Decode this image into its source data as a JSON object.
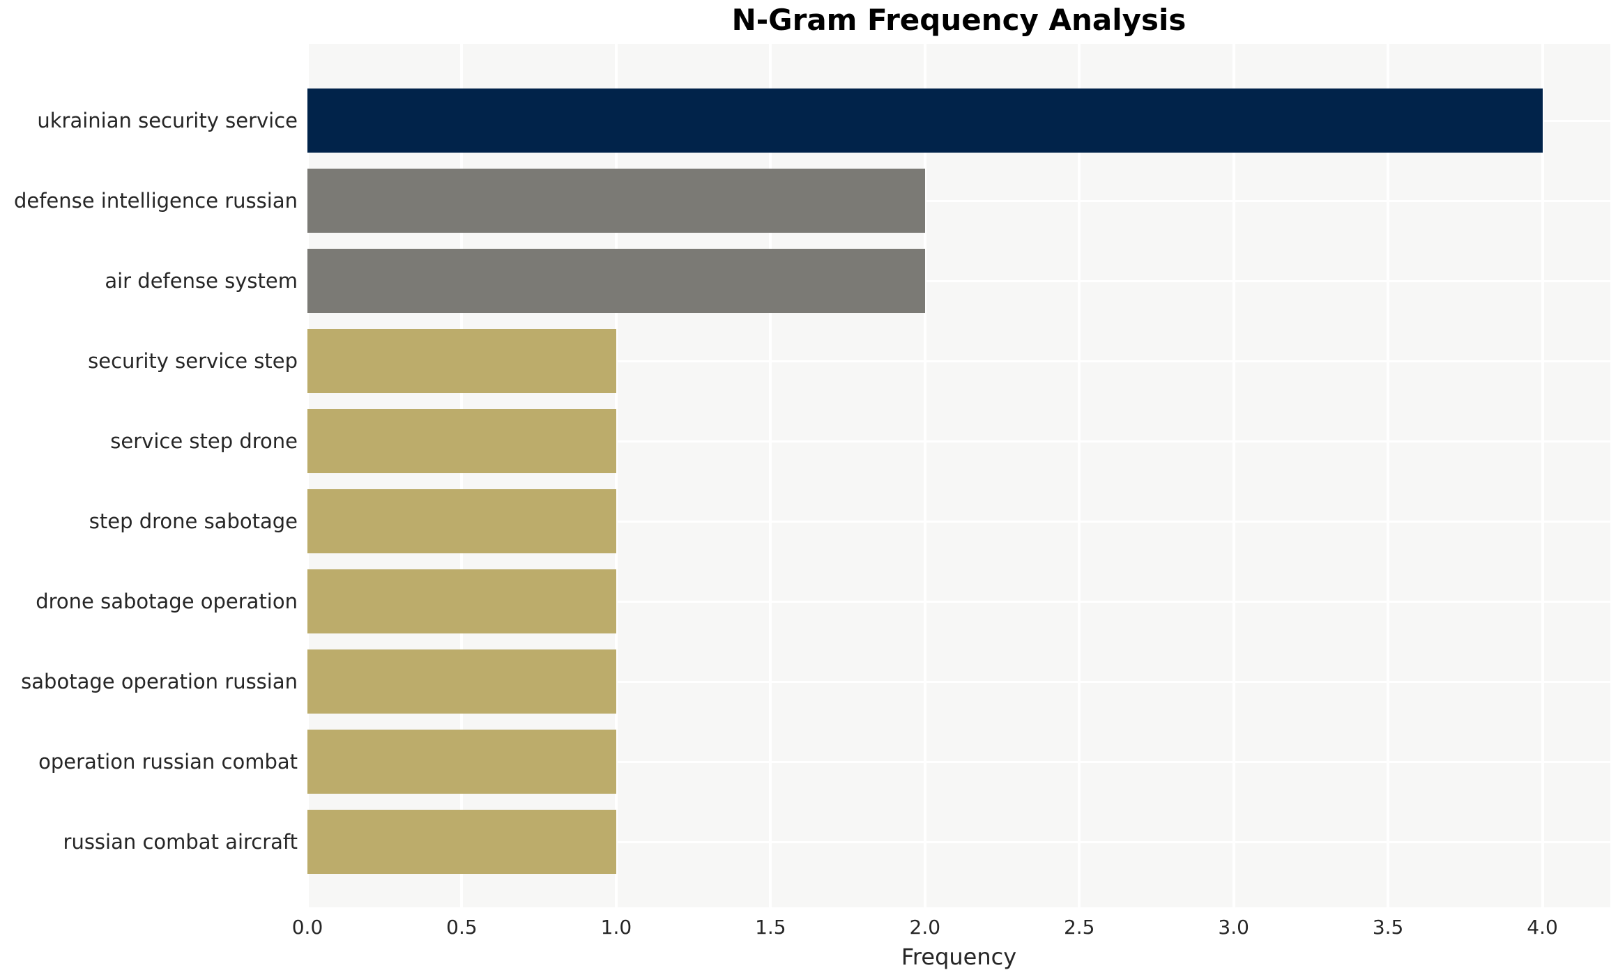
{
  "chart_data": {
    "type": "bar",
    "orientation": "horizontal",
    "title": "N-Gram Frequency Analysis",
    "xlabel": "Frequency",
    "ylabel": "",
    "categories": [
      "ukrainian security service",
      "defense intelligence russian",
      "air defense system",
      "security service step",
      "service step drone",
      "step drone sabotage",
      "drone sabotage operation",
      "sabotage operation russian",
      "operation russian combat",
      "russian combat aircraft"
    ],
    "values": [
      4,
      2,
      2,
      1,
      1,
      1,
      1,
      1,
      1,
      1
    ],
    "bar_colors": [
      "#01234a",
      "#7b7a75",
      "#7b7a75",
      "#bcac6b",
      "#bcac6b",
      "#bcac6b",
      "#bcac6b",
      "#bcac6b",
      "#bcac6b",
      "#bcac6b"
    ],
    "xlim": [
      0,
      4.22
    ],
    "xticks": [
      0.0,
      0.5,
      1.0,
      1.5,
      2.0,
      2.5,
      3.0,
      3.5,
      4.0
    ],
    "xtick_labels": [
      "0.0",
      "0.5",
      "1.0",
      "1.5",
      "2.0",
      "2.5",
      "3.0",
      "3.5",
      "4.0"
    ],
    "grid": true,
    "legend": "none",
    "plot_bg": "#f7f7f6",
    "grid_color": "#ffffff",
    "text_color": "#262626",
    "title_color": "#000000"
  }
}
